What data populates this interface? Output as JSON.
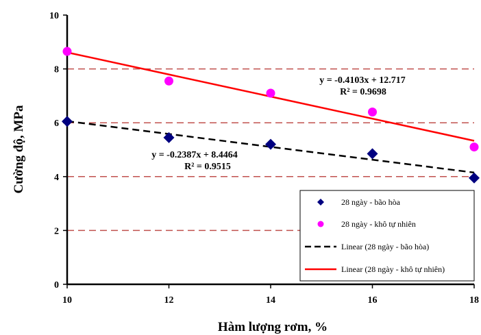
{
  "chart_data": {
    "type": "scatter",
    "title": "",
    "xlabel": "Hàm lượng rơm, %",
    "ylabel": "Cường độ, MPa",
    "xlim": [
      10,
      18
    ],
    "ylim": [
      0,
      10
    ],
    "x_ticks": [
      "10",
      "12",
      "14",
      "16",
      "18"
    ],
    "y_ticks": [
      "0",
      "2",
      "4",
      "6",
      "8",
      "10"
    ],
    "gridlines": {
      "y": [
        2,
        4,
        6,
        8
      ],
      "style": "dashed",
      "color": "#c0504d"
    },
    "legend_position": "bottom-right",
    "series": [
      {
        "name": "28 ngày - bão hòa",
        "marker": "diamond",
        "color": "#000080",
        "x": [
          10,
          12,
          14,
          16,
          18
        ],
        "y": [
          6.05,
          5.45,
          5.2,
          4.85,
          3.95
        ]
      },
      {
        "name": "28 ngày - khô tự nhiên",
        "marker": "circle",
        "color": "#ff00ff",
        "x": [
          10,
          12,
          14,
          16,
          18
        ],
        "y": [
          8.65,
          7.55,
          7.1,
          6.4,
          5.1
        ]
      }
    ],
    "trendlines": [
      {
        "name": "Linear (28 ngày - bão hòa)",
        "slope": -0.2387,
        "intercept": 8.4464,
        "style": "dashed",
        "color": "#000000",
        "equation": "y = -0.2387x + 8.4464",
        "r2": "R² = 0.9515"
      },
      {
        "name": "Linear (28 ngày - khô tự nhiên)",
        "slope": -0.4103,
        "intercept": 12.717,
        "style": "solid",
        "color": "#ff0000",
        "equation": "y = -0.4103x + 12.717",
        "r2": "R² = 0.9698"
      }
    ]
  }
}
